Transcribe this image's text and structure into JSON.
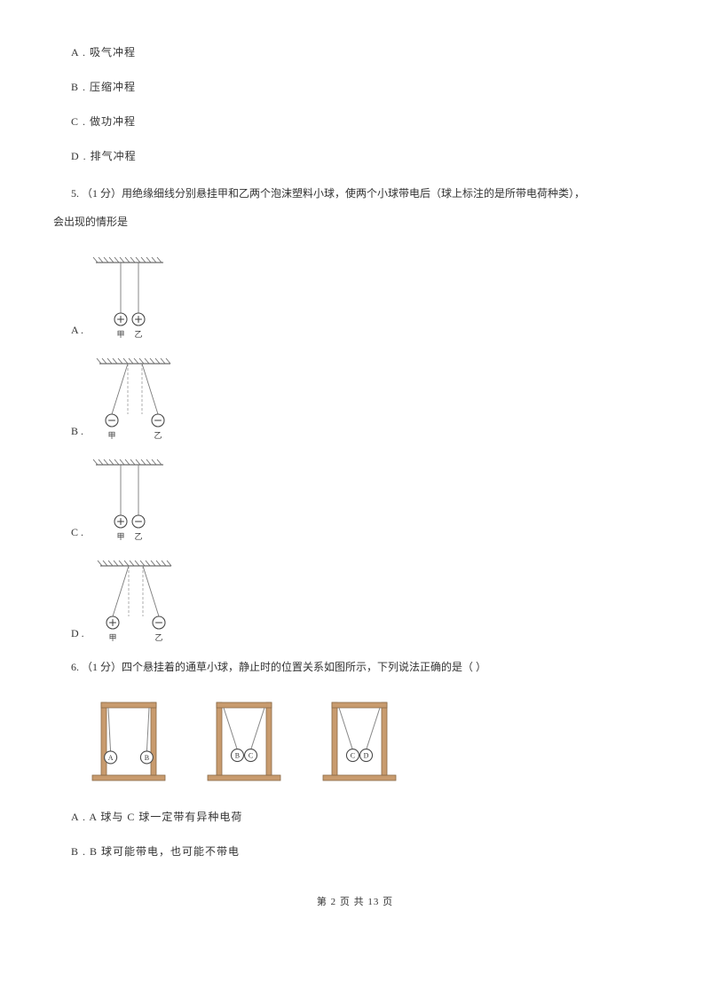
{
  "options_top": {
    "a": "A .  吸气冲程",
    "b": "B .  压缩冲程",
    "c": "C .  做功冲程",
    "d": "D .  排气冲程"
  },
  "q5": {
    "stem_pre": "5.    （1 分）用绝缘细线分别悬挂甲和乙两个泡沫塑料小球，使两个小球带电后（球上标注的是所带电荷种类），",
    "stem_post": "会出现的情形是",
    "opt_labels": {
      "a": "A . ",
      "b": "B . ",
      "c": "C . ",
      "d": "D . "
    }
  },
  "q6": {
    "stem": "6.    （1 分）四个悬挂着的通草小球，静止时的位置关系如图所示，下列说法正确的是（       ）",
    "opt_a": "A .  A 球与 C 球一定带有异种电荷",
    "opt_b": "B .  B 球可能带电，也可能不带电"
  },
  "footer": {
    "text": "第  2  页  共  13  页"
  },
  "diag_labels": {
    "jia": "甲",
    "yi": "乙",
    "A": "A",
    "B": "B",
    "C": "C",
    "D": "D"
  },
  "style": {
    "hatch_color": "#6d6d6d",
    "ball_stroke": "#4a4a4a",
    "string_color": "#7a7a7a",
    "dash_color": "#9a9a9a",
    "stand_fill": "#c89b6e",
    "stand_stroke": "#8a6a48",
    "string_q6": "#888888",
    "text_color": "#333333"
  }
}
